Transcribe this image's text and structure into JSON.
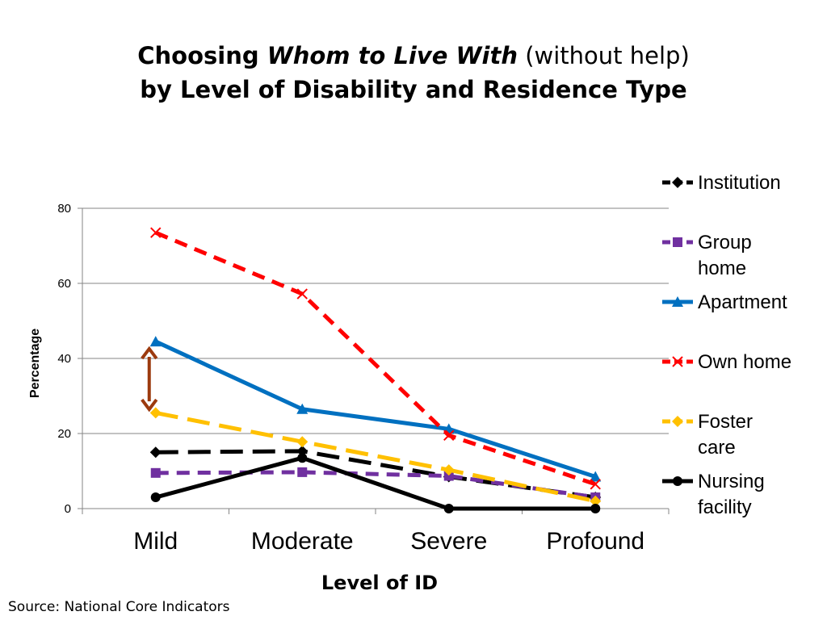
{
  "title": {
    "line1_part1": "Choosing ",
    "line1_part2": "Whom to Live With",
    "line1_part3": " (without help)",
    "line2": "by Level of Disability and Residence Type"
  },
  "source": "Source:  National Core Indicators",
  "chart_data": {
    "type": "line",
    "categories": [
      "Mild",
      "Moderate",
      "Severe",
      "Profound"
    ],
    "ylabel": "Percentage",
    "xlabel": "Level of ID",
    "ylim": [
      0,
      80
    ],
    "yticks": [
      0,
      20,
      40,
      60,
      80
    ],
    "grid": true,
    "legend_position": "right",
    "series": [
      {
        "name": "Institution",
        "values": [
          15,
          15.3,
          8.5,
          3
        ],
        "color": "#000000",
        "marker": "diamond",
        "dash": "long-dash"
      },
      {
        "name": "Group home",
        "values": [
          9.5,
          9.7,
          8.7,
          3
        ],
        "color": "#7030A0",
        "marker": "square",
        "dash": "dash"
      },
      {
        "name": "Apartment",
        "values": [
          44.5,
          26.5,
          21.2,
          8.5
        ],
        "color": "#0070C0",
        "marker": "triangle",
        "dash": "solid"
      },
      {
        "name": "Own home",
        "values": [
          73.5,
          57.2,
          19.5,
          6.5
        ],
        "color": "#FF0000",
        "marker": "x",
        "dash": "dash"
      },
      {
        "name": "Foster care",
        "values": [
          25.5,
          17.8,
          10.3,
          2
        ],
        "color": "#FFC000",
        "marker": "diamond",
        "dash": "long-dash"
      },
      {
        "name": "Nursing facility",
        "values": [
          3,
          13.5,
          0,
          0
        ],
        "color": "#000000",
        "marker": "circle",
        "dash": "solid"
      }
    ],
    "annotation": {
      "type": "double-arrow",
      "category": "Mild",
      "from": 43,
      "to": 26,
      "color": "#9C3A0E"
    }
  }
}
